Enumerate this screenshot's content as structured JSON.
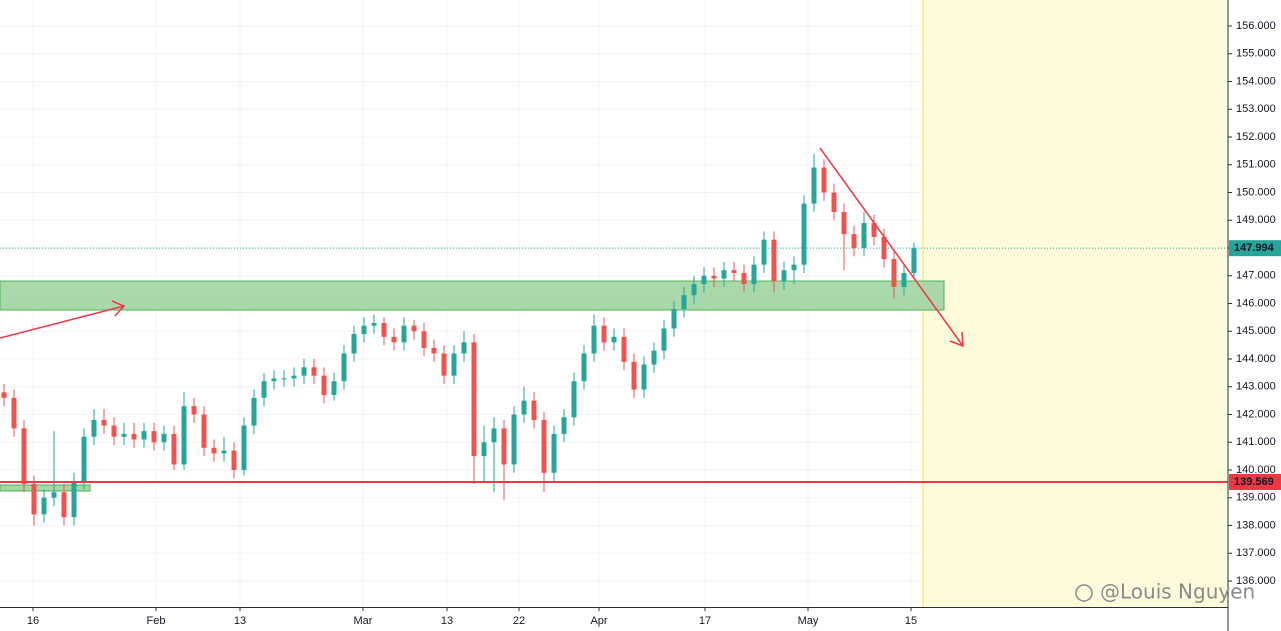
{
  "chart_data": {
    "type": "candlestick",
    "x": [
      0,
      1,
      2,
      3,
      4,
      5,
      6,
      7,
      8,
      9,
      10,
      11,
      12,
      13,
      14,
      15,
      16,
      17,
      18,
      19,
      20,
      21,
      22,
      23,
      24,
      25,
      26,
      27,
      28,
      29,
      30,
      31,
      32,
      33,
      34,
      35,
      36,
      37,
      38,
      39,
      40,
      41,
      42,
      43,
      44,
      45,
      46,
      47,
      48,
      49,
      50,
      51,
      52,
      53,
      54,
      55,
      56,
      57,
      58,
      59,
      60,
      61,
      62,
      63,
      64,
      65,
      66,
      67,
      68,
      69,
      70,
      71,
      72,
      73,
      74,
      75,
      76,
      77,
      78,
      79,
      80,
      81,
      82,
      83,
      84,
      85,
      86,
      87,
      88,
      89,
      90,
      91
    ],
    "open": [
      142.8,
      142.6,
      141.5,
      139.5,
      138.4,
      139.0,
      139.2,
      138.3,
      139.6,
      141.2,
      141.8,
      141.6,
      141.2,
      141.3,
      141.1,
      141.4,
      141.0,
      141.3,
      140.2,
      142.3,
      142.0,
      140.8,
      140.6,
      140.7,
      140.0,
      141.6,
      142.6,
      143.2,
      143.3,
      143.3,
      143.4,
      143.7,
      143.4,
      142.7,
      143.2,
      144.2,
      144.9,
      145.2,
      145.3,
      144.8,
      144.6,
      145.2,
      145.0,
      144.4,
      144.2,
      143.4,
      144.2,
      144.6,
      140.5,
      141.0,
      141.5,
      140.2,
      142.0,
      142.5,
      141.8,
      139.9,
      141.3,
      141.9,
      143.2,
      144.2,
      145.2,
      144.6,
      144.8,
      143.9,
      142.9,
      143.8,
      144.3,
      145.1,
      145.8,
      146.3,
      146.7,
      147.0,
      146.9,
      147.2,
      147.1,
      146.7,
      147.4,
      148.3,
      146.8,
      147.2,
      147.4,
      149.6,
      150.9,
      150.0,
      149.3,
      148.5,
      148.0,
      148.9,
      148.4,
      147.6,
      146.6,
      147.1
    ],
    "high": [
      143.1,
      142.9,
      141.8,
      139.8,
      139.3,
      141.4,
      139.5,
      139.9,
      141.5,
      142.2,
      142.2,
      141.9,
      141.7,
      141.7,
      141.7,
      141.7,
      141.6,
      141.6,
      142.8,
      142.6,
      142.3,
      141.1,
      141.2,
      141.0,
      141.9,
      142.9,
      143.5,
      143.6,
      143.6,
      143.7,
      144.0,
      144.0,
      143.7,
      143.5,
      144.5,
      145.2,
      145.5,
      145.6,
      145.5,
      145.1,
      145.5,
      145.4,
      145.3,
      144.7,
      144.5,
      144.5,
      145.0,
      144.9,
      141.6,
      141.9,
      141.8,
      142.3,
      143.0,
      142.8,
      142.1,
      141.6,
      142.2,
      143.5,
      144.5,
      145.6,
      145.5,
      145.1,
      145.1,
      144.2,
      144.1,
      144.6,
      145.4,
      146.1,
      146.6,
      147.0,
      147.3,
      147.3,
      147.5,
      147.5,
      147.4,
      147.7,
      148.6,
      148.6,
      147.5,
      147.7,
      149.9,
      151.4,
      151.2,
      150.3,
      149.6,
      148.8,
      149.3,
      149.2,
      148.7,
      147.9,
      147.4,
      148.2
    ],
    "low": [
      142.3,
      141.2,
      139.2,
      138.0,
      138.1,
      138.7,
      138.0,
      138.0,
      139.3,
      140.9,
      141.3,
      140.9,
      140.9,
      140.8,
      140.8,
      140.7,
      140.7,
      140.0,
      140.0,
      141.7,
      140.5,
      140.3,
      140.3,
      139.7,
      139.8,
      141.3,
      142.3,
      142.9,
      143.0,
      143.0,
      143.1,
      143.1,
      142.4,
      142.5,
      142.9,
      143.9,
      144.6,
      144.9,
      144.5,
      144.3,
      144.3,
      144.7,
      144.1,
      143.9,
      143.1,
      143.1,
      143.9,
      139.5,
      139.6,
      139.2,
      138.9,
      139.9,
      141.7,
      141.5,
      139.2,
      139.6,
      141.0,
      141.6,
      142.9,
      143.9,
      144.3,
      144.3,
      143.6,
      142.6,
      142.6,
      143.5,
      144.0,
      144.8,
      145.5,
      146.0,
      146.4,
      146.6,
      146.6,
      146.8,
      146.4,
      146.4,
      147.1,
      146.4,
      146.5,
      146.7,
      147.1,
      149.3,
      149.7,
      149.0,
      147.2,
      147.7,
      147.7,
      148.1,
      147.3,
      146.2,
      146.3,
      146.9
    ],
    "close": [
      142.6,
      141.5,
      139.5,
      138.4,
      139.0,
      139.2,
      138.3,
      139.6,
      141.2,
      141.8,
      141.6,
      141.2,
      141.3,
      141.1,
      141.4,
      141.0,
      141.3,
      140.2,
      142.3,
      142.0,
      140.8,
      140.6,
      140.7,
      140.0,
      141.6,
      142.6,
      143.2,
      143.3,
      143.3,
      143.4,
      143.7,
      143.4,
      142.7,
      143.2,
      144.2,
      144.9,
      145.2,
      145.3,
      144.8,
      144.6,
      145.2,
      145.0,
      144.4,
      144.2,
      143.4,
      144.2,
      144.6,
      140.5,
      141.0,
      141.5,
      140.2,
      142.0,
      142.5,
      141.8,
      139.9,
      141.3,
      141.9,
      143.2,
      144.2,
      145.2,
      144.6,
      144.8,
      143.9,
      142.9,
      143.8,
      144.3,
      145.1,
      145.8,
      146.3,
      146.7,
      147.0,
      146.9,
      147.2,
      147.1,
      146.7,
      147.4,
      148.3,
      146.8,
      147.2,
      147.4,
      149.6,
      150.9,
      150.0,
      149.3,
      148.5,
      148.0,
      148.9,
      148.4,
      147.6,
      146.6,
      147.1,
      147.994
    ],
    "up_color": "#26a69a",
    "down_color": "#ef5350",
    "xlim": [
      -0.4,
      122.4
    ],
    "xticks": [
      {
        "value": 2.9,
        "label": "16"
      },
      {
        "value": 15.2,
        "label": "Feb"
      },
      {
        "value": 23.6,
        "label": "13"
      },
      {
        "value": 35.9,
        "label": "Mar"
      },
      {
        "value": 44.3,
        "label": "13"
      },
      {
        "value": 51.5,
        "label": "22"
      },
      {
        "value": 59.5,
        "label": "Apr"
      },
      {
        "value": 70.1,
        "label": "17"
      },
      {
        "value": 80.4,
        "label": "May"
      },
      {
        "value": 90.7,
        "label": "15"
      }
    ],
    "ylim": [
      135.063,
      156.937
    ],
    "yticks": [
      {
        "value": 136,
        "label": "136.000"
      },
      {
        "value": 137,
        "label": "137.000"
      },
      {
        "value": 138,
        "label": "138.000"
      },
      {
        "value": 139,
        "label": "139.000"
      },
      {
        "value": 140,
        "label": "140.000"
      },
      {
        "value": 141,
        "label": "141.000"
      },
      {
        "value": 142,
        "label": "142.000"
      },
      {
        "value": 143,
        "label": "143.000"
      },
      {
        "value": 144,
        "label": "144.000"
      },
      {
        "value": 145,
        "label": "145.000"
      },
      {
        "value": 146,
        "label": "146.000"
      },
      {
        "value": 147,
        "label": "147.000"
      },
      {
        "value": 148,
        "label": "148.000"
      },
      {
        "value": 149,
        "label": "149.000"
      },
      {
        "value": 150,
        "label": "150.000"
      },
      {
        "value": 151,
        "label": "151.000"
      },
      {
        "value": 152,
        "label": "152.000"
      },
      {
        "value": 153,
        "label": "153.000"
      },
      {
        "value": 154,
        "label": "154.000"
      },
      {
        "value": 155,
        "label": "155.000"
      },
      {
        "value": 156,
        "label": "156.000"
      }
    ],
    "grid": true,
    "last_price": {
      "value": 147.994,
      "color": "#26a69a"
    },
    "price_line": {
      "value": 139.569,
      "color": "#f23645"
    },
    "watermark": "@Louis Nguyen"
  }
}
